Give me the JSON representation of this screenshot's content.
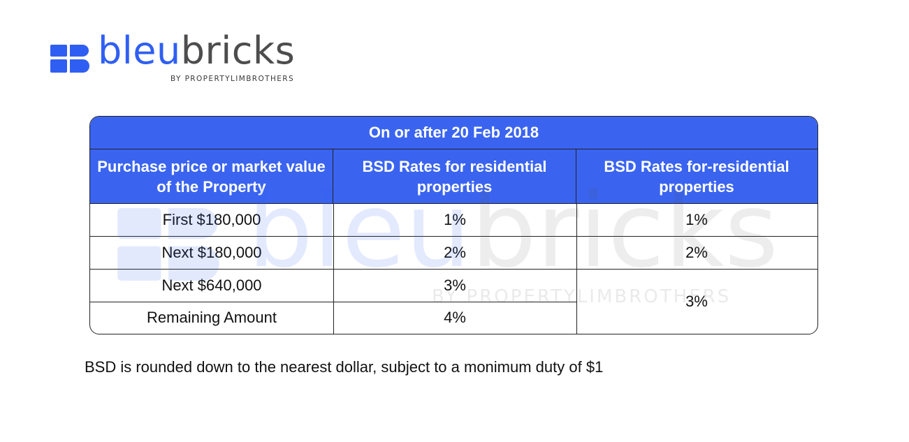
{
  "logo": {
    "brand_part1": "bleu",
    "brand_part2": "bricks",
    "tagline": "BY PROPERTYLIMBROTHERS",
    "icon": "bleubricks-logo-icon",
    "brand_color": "#2f5ff2",
    "text_color": "#4d4d4d"
  },
  "table": {
    "banner": "On or after 20 Feb 2018",
    "header_color": "#3a64f0",
    "headers": [
      "Purchase price or market value of the Property",
      "BSD Rates for residential properties",
      "BSD Rates for-residential properties"
    ],
    "rows": [
      {
        "price": "First $180,000",
        "residential": "1%",
        "non_residential": "1%"
      },
      {
        "price": "Next $180,000",
        "residential": "2%",
        "non_residential": "2%"
      },
      {
        "price": "Next $640,000",
        "residential": "3%",
        "non_residential": "3%"
      },
      {
        "price": "Remaining Amount",
        "residential": "4%",
        "non_residential": "3%"
      }
    ],
    "merged_non_residential": "3%"
  },
  "footnote": "BSD is rounded down to the nearest dollar, subject to a monimum duty of $1"
}
